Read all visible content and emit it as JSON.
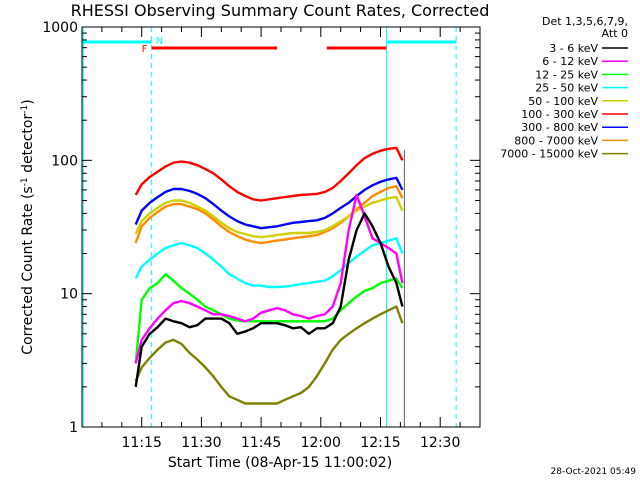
{
  "chart_data": {
    "type": "line",
    "title": "RHESSI Observing Summary Count Rates, Corrected",
    "xlabel": "Start Time (08-Apr-15 11:00:02)",
    "ylabel": "Corrected Count Rate (s⁻¹ detector⁻¹)",
    "ylabel_parts": [
      "Corrected Count Rate (s",
      "-1",
      " detector",
      "-1",
      ")"
    ],
    "y_scale": "log",
    "ylim": [
      1,
      1000
    ],
    "y_ticks": [
      1,
      10,
      100,
      1000
    ],
    "y_tick_labels": [
      "1",
      "10",
      "100",
      "1000"
    ],
    "xlim_min": [
      0,
      100
    ],
    "x_ticks_min": [
      15,
      30,
      45,
      60,
      75,
      90
    ],
    "x_tick_labels": [
      "11:15",
      "11:30",
      "11:45",
      "12:00",
      "12:15",
      "12:30"
    ],
    "grid": false,
    "legend_position": "right",
    "legend_header": [
      "Det 1,3,5,6,7,9,",
      "Att 0"
    ],
    "timestamp": "28-Oct-2021 05:49",
    "x": [
      13.5,
      15,
      17,
      19,
      21,
      23,
      25,
      27,
      29,
      31,
      33,
      35,
      37,
      39,
      41,
      43,
      45,
      47,
      49,
      51,
      53,
      55,
      57,
      59,
      61,
      63,
      65,
      67,
      69,
      71,
      73,
      75,
      77,
      79,
      80.5
    ],
    "series": [
      {
        "name": "3 - 6 keV",
        "color": "#000000",
        "values": [
          2.0,
          4.0,
          5.0,
          5.6,
          6.5,
          6.2,
          6.0,
          5.6,
          5.8,
          6.5,
          6.5,
          6.5,
          6.0,
          5.0,
          5.2,
          5.5,
          6.0,
          6.0,
          6.0,
          5.8,
          5.5,
          5.6,
          5.0,
          5.5,
          5.5,
          6.0,
          8.0,
          18,
          30,
          40,
          32,
          24,
          16,
          12,
          8
        ]
      },
      {
        "name": "6 - 12 keV",
        "color": "#ff00ff",
        "values": [
          3.0,
          4.5,
          5.5,
          6.5,
          7.5,
          8.5,
          8.8,
          8.5,
          8.0,
          7.5,
          7.0,
          7.0,
          6.8,
          6.5,
          6.2,
          6.5,
          7.2,
          7.5,
          7.8,
          7.5,
          7.0,
          6.8,
          6.5,
          6.8,
          7.0,
          8.0,
          12,
          30,
          55,
          38,
          26,
          24,
          22,
          20,
          12
        ]
      },
      {
        "name": "12 - 25 keV",
        "color": "#00ff00",
        "values": [
          3.0,
          9.0,
          11,
          12,
          14,
          12.5,
          11,
          10,
          9,
          8,
          7.5,
          7,
          6.5,
          6.3,
          6.2,
          6.2,
          6.2,
          6.2,
          6.2,
          6.2,
          6.2,
          6.2,
          6.2,
          6.2,
          6.2,
          6.5,
          7.5,
          8.5,
          9.5,
          10.5,
          11,
          12,
          12.5,
          13,
          11
        ]
      },
      {
        "name": "25 - 50 keV",
        "color": "#00ffff",
        "values": [
          13,
          16,
          18,
          20,
          22,
          23,
          24,
          23,
          22,
          20,
          18,
          16,
          14,
          13,
          12,
          11.5,
          11.5,
          11.2,
          11.2,
          11.3,
          11.5,
          11.8,
          12,
          12.3,
          12.5,
          13.5,
          15,
          17,
          19,
          21,
          23,
          24,
          25,
          26,
          20
        ]
      },
      {
        "name": "50 - 100 keV",
        "color": "#d0d000",
        "values": [
          28,
          35,
          40,
          44,
          48,
          50,
          50,
          48,
          45,
          42,
          38,
          34,
          31,
          29,
          28,
          27,
          26.5,
          27,
          27.5,
          28,
          28.5,
          28.5,
          28.5,
          29,
          30,
          32,
          35,
          38,
          42,
          45,
          48,
          50,
          52,
          53,
          42
        ]
      },
      {
        "name": "100 - 300 keV",
        "color": "#ff0000",
        "values": [
          55,
          66,
          75,
          82,
          90,
          96,
          98,
          96,
          92,
          86,
          80,
          72,
          64,
          58,
          54,
          51,
          50,
          51,
          52,
          53,
          54,
          55,
          55.5,
          56,
          58,
          62,
          70,
          80,
          92,
          104,
          112,
          118,
          122,
          124,
          100
        ]
      },
      {
        "name": "300 - 800 keV",
        "color": "#0000ff",
        "values": [
          33,
          42,
          48,
          53,
          58,
          61,
          61,
          59,
          56,
          52,
          47,
          42,
          38,
          35,
          33,
          32,
          31,
          31.5,
          32,
          33,
          34,
          34.5,
          35,
          35.5,
          37,
          40,
          44,
          48,
          54,
          60,
          65,
          69,
          72,
          74,
          60
        ]
      },
      {
        "name": "800 - 7000 keV",
        "color": "#ff8c00",
        "values": [
          24,
          32,
          37,
          41,
          45,
          47,
          47,
          45,
          43,
          40,
          36,
          32,
          29,
          27,
          25.5,
          24.5,
          24,
          24.5,
          25,
          25.5,
          26,
          26.5,
          27,
          27.5,
          29,
          31,
          34,
          38,
          43,
          48,
          54,
          58,
          62,
          64,
          52
        ]
      },
      {
        "name": "7000 - 15000 keV",
        "color": "#808000",
        "values": [
          2.2,
          2.8,
          3.3,
          3.8,
          4.3,
          4.5,
          4.2,
          3.6,
          3.2,
          2.8,
          2.4,
          2.0,
          1.7,
          1.6,
          1.5,
          1.5,
          1.5,
          1.5,
          1.5,
          1.6,
          1.7,
          1.8,
          2.0,
          2.4,
          3.0,
          3.8,
          4.5,
          5.0,
          5.5,
          6.0,
          6.5,
          7.0,
          7.5,
          8.0,
          6.0
        ]
      }
    ],
    "annotations": {
      "flags": [
        {
          "label": "F",
          "color": "#ff0000"
        },
        {
          "label": "N",
          "color": "#00ffff"
        }
      ],
      "cyan_bars_min": [
        [
          0,
          17.5
        ],
        [
          76.5,
          94
        ]
      ],
      "red_bars_min": [
        [
          17.5,
          49
        ],
        [
          61.5,
          76.5
        ]
      ],
      "vlines_solid_min": [
        76.5
      ],
      "vlines_dashed_min": [
        17.5,
        94
      ],
      "vline_dark_min": [
        81
      ]
    }
  }
}
